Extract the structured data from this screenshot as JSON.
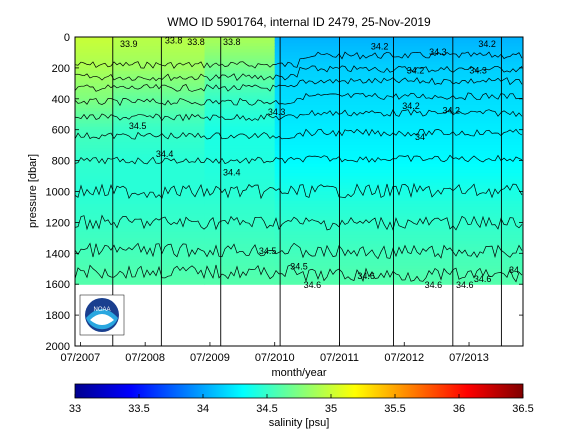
{
  "chart_data": {
    "type": "heatmap",
    "title": "WMO ID 5901764, internal ID 2479, 25-Nov-2019",
    "xlabel": "month/year",
    "ylabel": "pressure [dbar]",
    "x_ticks": [
      "07/2007",
      "07/2008",
      "07/2009",
      "07/2010",
      "07/2011",
      "07/2012",
      "07/2013"
    ],
    "y_ticks": [
      0,
      200,
      400,
      600,
      800,
      1000,
      1200,
      1400,
      1600,
      1800,
      2000
    ],
    "ylim": [
      2000,
      0
    ],
    "xlim": [
      "2007-06",
      "2014-05"
    ],
    "max_pressure_sampled": 1600,
    "colorbar": {
      "label": "salinity [psu]",
      "range": [
        33,
        36.5
      ],
      "ticks": [
        "33",
        "33.5",
        "34",
        "34.5",
        "35",
        "35.5",
        "36",
        "36.5"
      ],
      "colormap": "jet"
    },
    "contour_labels": [
      "33.9",
      "33.8",
      "33.8",
      "33.8",
      "34.2",
      "34.2",
      "34.2",
      "34.3",
      "34.3",
      "34.2",
      "34.2",
      "34",
      "34.5",
      "34.4",
      "34.4",
      "34.3",
      "34.5",
      "34.5",
      "34.6",
      "34.6",
      "34.6",
      "34.6",
      "34.6",
      "34"
    ],
    "profiles_by_period": [
      {
        "period": "2007-07 to 2008-01",
        "depth_salinity": [
          [
            0,
            35.0
          ],
          [
            200,
            34.9
          ],
          [
            400,
            34.75
          ],
          [
            600,
            34.55
          ],
          [
            800,
            34.48
          ],
          [
            1000,
            34.45
          ],
          [
            1200,
            34.5
          ],
          [
            1600,
            34.6
          ]
        ]
      },
      {
        "period": "2008-01 to 2009-06",
        "depth_salinity": [
          [
            0,
            34.95
          ],
          [
            200,
            34.85
          ],
          [
            400,
            34.65
          ],
          [
            600,
            34.5
          ],
          [
            800,
            34.45
          ],
          [
            1000,
            34.45
          ],
          [
            1200,
            34.5
          ],
          [
            1600,
            34.6
          ]
        ]
      },
      {
        "period": "2009-06 to 2010-07",
        "depth_salinity": [
          [
            0,
            34.9
          ],
          [
            200,
            34.7
          ],
          [
            400,
            34.5
          ],
          [
            600,
            34.4
          ],
          [
            800,
            34.42
          ],
          [
            1000,
            34.45
          ],
          [
            1200,
            34.5
          ],
          [
            1600,
            34.6
          ]
        ]
      },
      {
        "period": "2010-07 to 2014-05",
        "depth_salinity": [
          [
            0,
            34.05
          ],
          [
            200,
            34.15
          ],
          [
            400,
            34.2
          ],
          [
            600,
            34.25
          ],
          [
            800,
            34.3
          ],
          [
            1000,
            34.4
          ],
          [
            1200,
            34.48
          ],
          [
            1600,
            34.6
          ]
        ]
      }
    ]
  },
  "logo": {
    "text": "NOAA",
    "name": "noaa-logo"
  }
}
